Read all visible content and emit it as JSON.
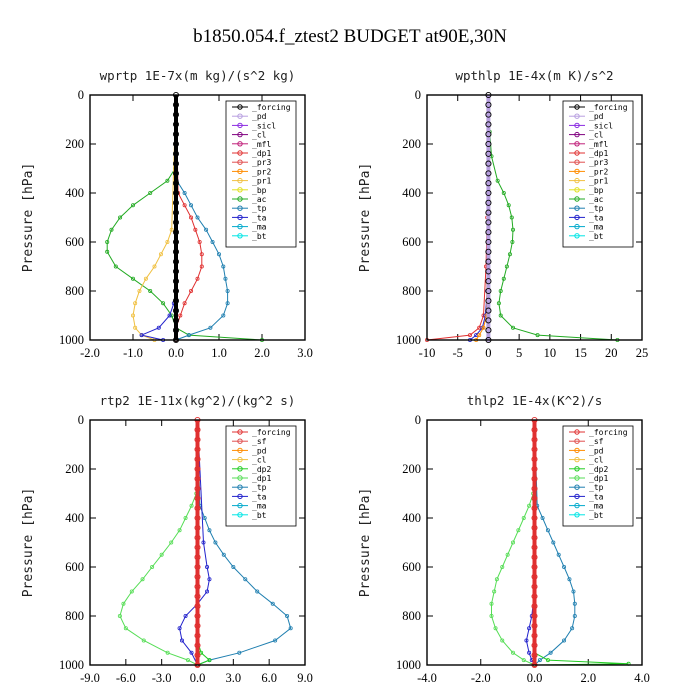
{
  "figure_title": "b1850.054.f_ztest2  BUDGET at90E,30N",
  "chart_data": [
    {
      "type": "line",
      "title": "wprtp  1E-7x(m kg)/(s^2 kg)",
      "ylabel": "Pressure [hPa]",
      "xlim": [
        -2.0,
        3.0
      ],
      "ylim": [
        1000,
        0
      ],
      "xticks": [
        -2.0,
        -1.0,
        0.0,
        1.0,
        2.0,
        3.0
      ],
      "xtick_labels": [
        "-2.0",
        "-1.0",
        "0.0",
        "1.0",
        "2.0",
        "3.0"
      ],
      "yticks": [
        0,
        200,
        400,
        600,
        800,
        1000
      ],
      "legend": [
        "_forcing",
        "_pd",
        "_sicl",
        "_cl",
        "_mfl",
        "_dp1",
        "_pr3",
        "_pr2",
        "_pr1",
        "_bp",
        "_ac",
        "_tp",
        "_ta",
        "_ma",
        "_bt"
      ],
      "legend_colors": [
        "#000000",
        "#b8a0e0",
        "#8a2be2",
        "#800080",
        "#c0207a",
        "#e03030",
        "#e05050",
        "#ff8c00",
        "#f0c040",
        "#e0e020",
        "#22aa22",
        "#1f7fb0",
        "#2222cc",
        "#00aacc",
        "#00e5e5"
      ],
      "series": [
        {
          "name": "_ac",
          "color": "#22aa22",
          "y": [
            0,
            300,
            350,
            400,
            450,
            500,
            550,
            600,
            640,
            700,
            750,
            800,
            850,
            900,
            950,
            980,
            1000
          ],
          "x": [
            0,
            -0.02,
            -0.2,
            -0.6,
            -1.0,
            -1.3,
            -1.5,
            -1.6,
            -1.6,
            -1.4,
            -1.0,
            -0.6,
            -0.3,
            -0.1,
            0.0,
            0.3,
            2.0
          ]
        },
        {
          "name": "_tp",
          "color": "#1f7fb0",
          "y": [
            0,
            350,
            400,
            450,
            500,
            550,
            600,
            650,
            700,
            750,
            800,
            850,
            900,
            950,
            980,
            1000
          ],
          "x": [
            0,
            0.02,
            0.2,
            0.35,
            0.5,
            0.7,
            0.85,
            1.0,
            1.1,
            1.15,
            1.2,
            1.2,
            1.1,
            0.8,
            0.3,
            0.0
          ]
        },
        {
          "name": "_dp1",
          "color": "#e03030",
          "y": [
            0,
            400,
            450,
            500,
            550,
            600,
            650,
            700,
            750,
            800,
            850,
            900,
            950,
            1000
          ],
          "x": [
            0,
            0.05,
            0.2,
            0.35,
            0.45,
            0.55,
            0.6,
            0.6,
            0.5,
            0.35,
            0.2,
            0.1,
            0.0,
            0.0
          ]
        },
        {
          "name": "_pr1",
          "color": "#f0c040",
          "y": [
            0,
            550,
            600,
            650,
            700,
            750,
            800,
            850,
            900,
            950,
            980,
            1000
          ],
          "x": [
            0,
            -0.1,
            -0.2,
            -0.35,
            -0.5,
            -0.7,
            -0.85,
            -0.95,
            -1.0,
            -0.95,
            -0.8,
            -0.5
          ]
        },
        {
          "name": "_ta",
          "color": "#2222cc",
          "y": [
            0,
            800,
            850,
            900,
            950,
            980,
            1000
          ],
          "x": [
            0,
            0.0,
            -0.05,
            -0.15,
            -0.4,
            -0.8,
            -0.3
          ]
        },
        {
          "name": "_forcing",
          "color": "#000000",
          "y": [
            0,
            1000
          ],
          "x": [
            0,
            0
          ]
        }
      ]
    },
    {
      "type": "line",
      "title": "wpthlp  1E-4x(m K)/s^2",
      "ylabel": "Pressure [hPa]",
      "xlim": [
        -10,
        25
      ],
      "ylim": [
        1000,
        0
      ],
      "xticks": [
        -10,
        -5,
        0,
        5,
        10,
        15,
        20,
        25
      ],
      "xtick_labels": [
        "-10",
        "-5",
        "0",
        "5",
        "10",
        "15",
        "20",
        "25"
      ],
      "yticks": [
        0,
        200,
        400,
        600,
        800,
        1000
      ],
      "legend": [
        "_forcing",
        "_pd",
        "_sicl",
        "_cl",
        "_mfl",
        "_dp1",
        "_pr3",
        "_pr2",
        "_pr1",
        "_bp",
        "_ac",
        "_tp",
        "_ta",
        "_ma",
        "_bt"
      ],
      "legend_colors": [
        "#000000",
        "#b8a0e0",
        "#8a2be2",
        "#800080",
        "#c0207a",
        "#e03030",
        "#e05050",
        "#ff8c00",
        "#f0c040",
        "#e0e020",
        "#22aa22",
        "#1f7fb0",
        "#2222cc",
        "#00aacc",
        "#00e5e5"
      ],
      "series": [
        {
          "name": "_ac",
          "color": "#22aa22",
          "y": [
            0,
            150,
            250,
            350,
            400,
            450,
            500,
            550,
            600,
            650,
            700,
            750,
            800,
            850,
            900,
            950,
            980,
            1000
          ],
          "x": [
            0,
            0.2,
            0.5,
            1.5,
            2.5,
            3.3,
            3.8,
            4.0,
            3.9,
            3.5,
            3.0,
            2.5,
            2.0,
            1.7,
            2.0,
            4.0,
            8.0,
            21.0
          ]
        },
        {
          "name": "_dp1",
          "color": "#e03030",
          "y": [
            0,
            500,
            700,
            900,
            950,
            980,
            1000
          ],
          "x": [
            0,
            -0.2,
            -0.4,
            -0.8,
            -1.5,
            -3.0,
            -10.0
          ]
        },
        {
          "name": "_ta",
          "color": "#2222cc",
          "y": [
            0,
            800,
            900,
            950,
            980,
            1000
          ],
          "x": [
            0,
            -0.2,
            -0.5,
            -1.0,
            -2.0,
            -3.0
          ]
        },
        {
          "name": "_pr1",
          "color": "#ff8c00",
          "y": [
            0,
            900,
            950,
            980,
            1000
          ],
          "x": [
            0,
            -0.3,
            -0.8,
            -1.5,
            -2.0
          ]
        },
        {
          "name": "_sicl",
          "color": "#b8a0e0",
          "y": [
            0,
            1000
          ],
          "x": [
            0,
            0
          ]
        }
      ]
    },
    {
      "type": "line",
      "title": "rtp2  1E-11x(kg^2)/(kg^2 s)",
      "ylabel": "Pressure [hPa]",
      "xlim": [
        -9.0,
        9.0
      ],
      "ylim": [
        1000,
        0
      ],
      "xticks": [
        -9.0,
        -6.0,
        -3.0,
        0.0,
        3.0,
        6.0,
        9.0
      ],
      "xtick_labels": [
        "-9.0",
        "-6.0",
        "-3.0",
        "0.0",
        "3.0",
        "6.0",
        "9.0"
      ],
      "yticks": [
        0,
        200,
        400,
        600,
        800,
        1000
      ],
      "legend": [
        "_forcing",
        "_sf",
        "_pd",
        "_cl",
        "_dp2",
        "_dp1",
        "_tp",
        "_ta",
        "_ma",
        "_bt"
      ],
      "legend_colors": [
        "#e03030",
        "#e05050",
        "#ff8c00",
        "#f0c040",
        "#22cc22",
        "#55dd55",
        "#1f7fb0",
        "#2222cc",
        "#00aacc",
        "#00e5e5"
      ],
      "series": [
        {
          "name": "_dp1",
          "color": "#55dd55",
          "y": [
            0,
            300,
            350,
            400,
            450,
            500,
            550,
            600,
            650,
            700,
            750,
            800,
            850,
            900,
            950,
            980,
            1000
          ],
          "x": [
            0,
            -0.1,
            -0.5,
            -1.0,
            -1.5,
            -2.2,
            -3.0,
            -3.8,
            -4.6,
            -5.5,
            -6.2,
            -6.5,
            -6.0,
            -4.5,
            -2.5,
            -0.8,
            0.0
          ]
        },
        {
          "name": "_tp",
          "color": "#1f7fb0",
          "y": [
            0,
            350,
            400,
            450,
            500,
            550,
            600,
            650,
            700,
            750,
            800,
            850,
            900,
            950,
            980,
            1000
          ],
          "x": [
            0,
            0.2,
            0.6,
            1.0,
            1.5,
            2.2,
            3.0,
            4.0,
            5.0,
            6.3,
            7.5,
            7.8,
            6.5,
            3.5,
            1.0,
            0.0
          ]
        },
        {
          "name": "_ta",
          "color": "#2222cc",
          "y": [
            0,
            500,
            600,
            650,
            700,
            750,
            800,
            850,
            900,
            950,
            1000
          ],
          "x": [
            0,
            0.5,
            0.8,
            1.0,
            0.8,
            0.0,
            -1.0,
            -1.5,
            -1.3,
            -0.5,
            0.0
          ]
        },
        {
          "name": "_dp2",
          "color": "#22cc22",
          "y": [
            0,
            900,
            950,
            980,
            1000
          ],
          "x": [
            0,
            0.0,
            0.3,
            1.0,
            0.0
          ]
        },
        {
          "name": "_forcing",
          "color": "#e03030",
          "y": [
            0,
            1000
          ],
          "x": [
            0,
            0
          ]
        }
      ]
    },
    {
      "type": "line",
      "title": "thlp2  1E-4x(K^2)/s",
      "ylabel": "Pressure [hPa]",
      "xlim": [
        -4.0,
        4.0
      ],
      "ylim": [
        1000,
        0
      ],
      "xticks": [
        -4.0,
        -2.0,
        0.0,
        2.0,
        4.0
      ],
      "xtick_labels": [
        "-4.0",
        "-2.0",
        "0.0",
        "2.0",
        "4.0"
      ],
      "yticks": [
        0,
        200,
        400,
        600,
        800,
        1000
      ],
      "legend": [
        "_forcing",
        "_sf",
        "_pd",
        "_cl",
        "_dp2",
        "_dp1",
        "_tp",
        "_ta",
        "_ma",
        "_bt"
      ],
      "legend_colors": [
        "#e03030",
        "#e05050",
        "#ff8c00",
        "#f0c040",
        "#22cc22",
        "#55dd55",
        "#1f7fb0",
        "#2222cc",
        "#00aacc",
        "#00e5e5"
      ],
      "series": [
        {
          "name": "_dp1",
          "color": "#55dd55",
          "y": [
            0,
            300,
            350,
            400,
            450,
            500,
            550,
            600,
            650,
            700,
            750,
            800,
            850,
            900,
            950,
            980,
            1000
          ],
          "x": [
            0,
            -0.05,
            -0.2,
            -0.4,
            -0.6,
            -0.8,
            -1.0,
            -1.2,
            -1.4,
            -1.5,
            -1.6,
            -1.6,
            -1.45,
            -1.2,
            -0.8,
            -0.4,
            0.0
          ]
        },
        {
          "name": "_tp",
          "color": "#1f7fb0",
          "y": [
            0,
            350,
            400,
            450,
            500,
            550,
            600,
            650,
            700,
            750,
            800,
            850,
            900,
            950,
            980,
            1000
          ],
          "x": [
            0,
            0.1,
            0.3,
            0.5,
            0.7,
            0.9,
            1.1,
            1.3,
            1.45,
            1.5,
            1.5,
            1.4,
            1.1,
            0.6,
            0.2,
            0.0
          ]
        },
        {
          "name": "_ta",
          "color": "#2222cc",
          "y": [
            0,
            700,
            800,
            850,
            900,
            950,
            980,
            1000
          ],
          "x": [
            0,
            0.0,
            -0.1,
            -0.2,
            -0.3,
            -0.2,
            -0.1,
            0.0
          ]
        },
        {
          "name": "_dp2",
          "color": "#22cc22",
          "y": [
            0,
            950,
            980,
            995,
            1000
          ],
          "x": [
            0,
            0.0,
            0.5,
            3.5,
            0.0
          ]
        },
        {
          "name": "_forcing",
          "color": "#e03030",
          "y": [
            0,
            1000
          ],
          "x": [
            0,
            0
          ]
        }
      ]
    }
  ]
}
